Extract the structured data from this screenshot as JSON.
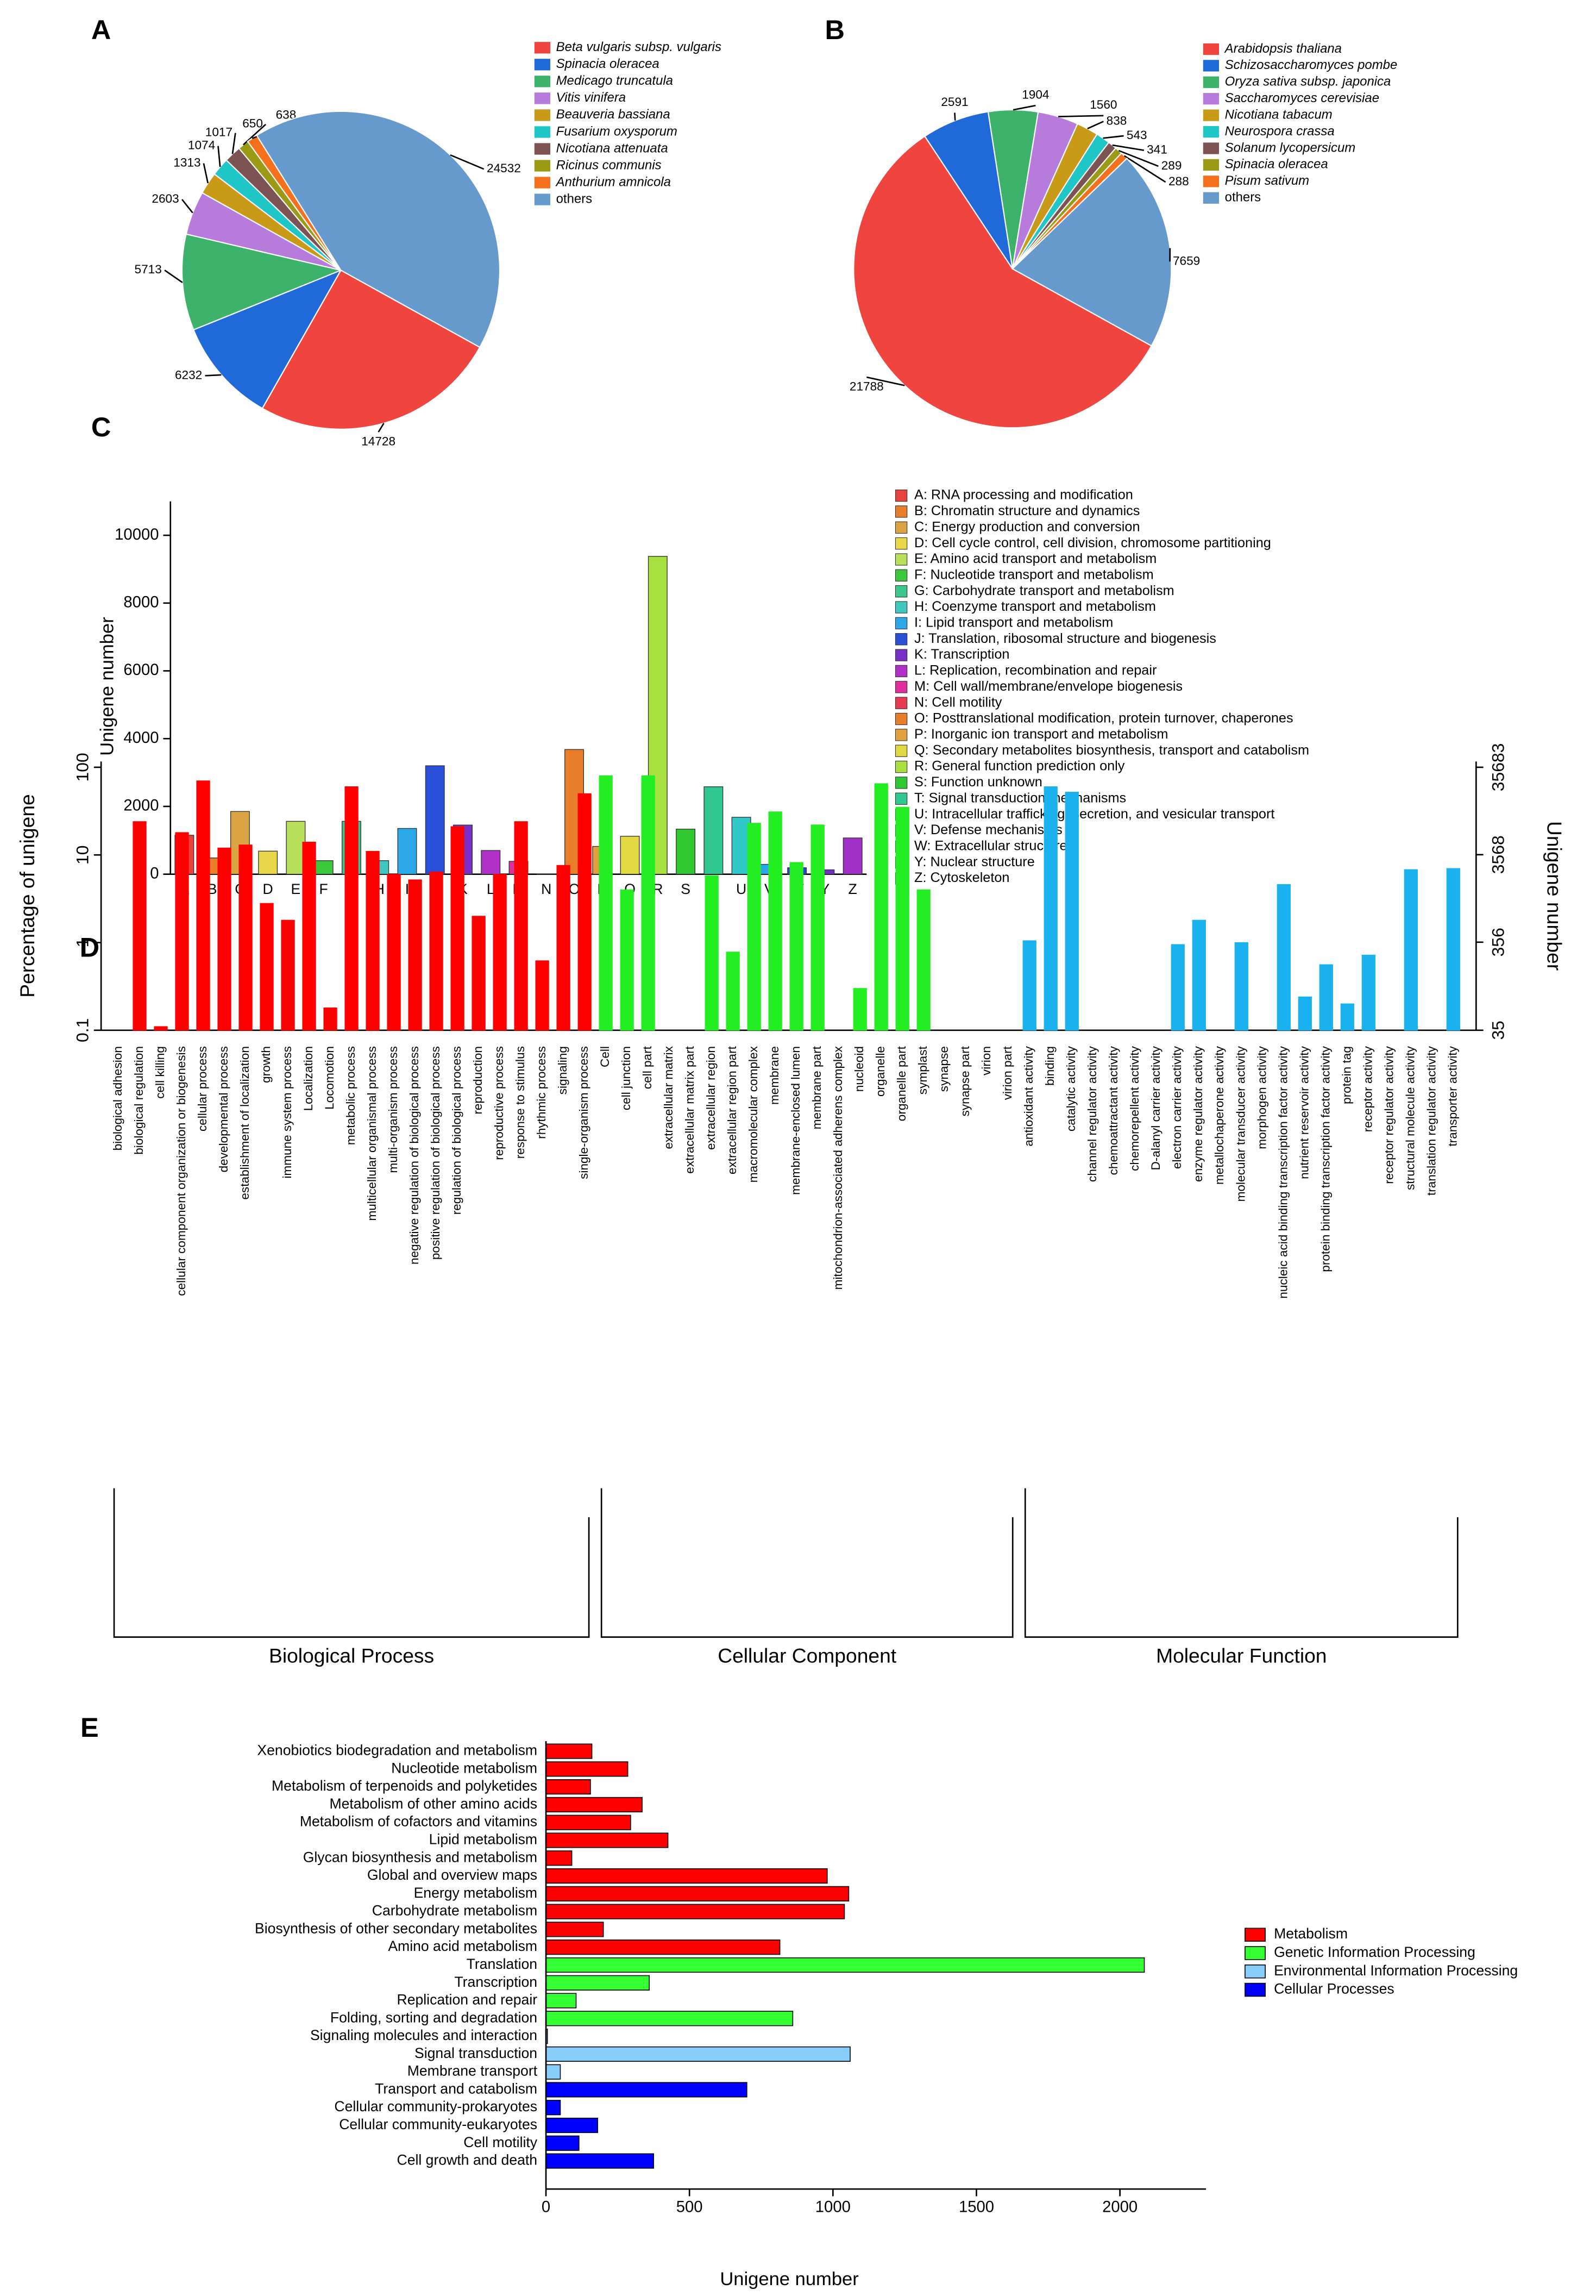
{
  "chart_data": [
    {
      "type": "pie",
      "panel": "A",
      "categories": [
        "Beta vulgaris subsp. vulgaris",
        "Spinacia oleracea",
        "Medicago truncatula",
        "Vitis vinifera",
        "Beauveria bassiana",
        "Fusarium oxysporum",
        "Nicotiana attenuata",
        "Ricinus communis",
        "Anthurium amnicola",
        "others"
      ],
      "values": [
        14728,
        6232,
        5713,
        2603,
        1313,
        1074,
        1017,
        650,
        638,
        24532
      ],
      "colors": [
        "#f0453f",
        "#1f6ad8",
        "#3cb26a",
        "#b77bdc",
        "#c99a17",
        "#1fc6c6",
        "#7d5252",
        "#9a9a14",
        "#f5701c",
        "#6699cc"
      ]
    },
    {
      "type": "pie",
      "panel": "B",
      "categories": [
        "Arabidopsis thaliana",
        "Schizosaccharomyces pombe",
        "Oryza sativa subsp. japonica",
        "Saccharomyces cerevisiae",
        "Nicotiana tabacum",
        "Neurospora crassa",
        "Solanum lycopersicum",
        "Spinacia oleracea",
        "Pisum sativum",
        "others"
      ],
      "values": [
        21788,
        2591,
        1904,
        1560,
        838,
        543,
        341,
        289,
        288,
        7659
      ],
      "colors": [
        "#f0453f",
        "#1f6ad8",
        "#3cb26a",
        "#b77bdc",
        "#c99a17",
        "#1fc6c6",
        "#7d5252",
        "#9a9a14",
        "#f5701c",
        "#6699cc"
      ]
    },
    {
      "type": "bar",
      "panel": "C",
      "ylabel": "Unigene number",
      "categories": [
        "A",
        "B",
        "C",
        "D",
        "E",
        "F",
        "G",
        "H",
        "I",
        "J",
        "K",
        "L",
        "M",
        "N",
        "O",
        "P",
        "Q",
        "R",
        "S",
        "T",
        "U",
        "V",
        "W",
        "Y",
        "Z"
      ],
      "values": [
        1150,
        480,
        1850,
        680,
        1560,
        400,
        1560,
        400,
        1350,
        3200,
        1450,
        700,
        380,
        10,
        3680,
        820,
        1120,
        9380,
        1330,
        2580,
        1680,
        290,
        190,
        130,
        1070
      ],
      "colors": [
        "#e8423f",
        "#e87d2a",
        "#d9a441",
        "#e8d84a",
        "#b8e05a",
        "#3cc83c",
        "#3cc88c",
        "#3ec8c0",
        "#2aa8e8",
        "#2a4fd8",
        "#7a30c8",
        "#b030c8",
        "#e030a0",
        "#e83a50",
        "#e87d2a",
        "#e0a040",
        "#e0d840",
        "#a8e040",
        "#30c830",
        "#30c890",
        "#30c8c8",
        "#28a8e8",
        "#2848d8",
        "#7030c8",
        "#a030c8"
      ],
      "legend": [
        "A: RNA processing and modification",
        "B: Chromatin structure and dynamics",
        "C: Energy production and conversion",
        "D: Cell cycle control, cell division, chromosome partitioning",
        "E: Amino acid transport and metabolism",
        "F: Nucleotide transport and metabolism",
        "G: Carbohydrate transport and metabolism",
        "H: Coenzyme transport and metabolism",
        "I: Lipid transport and metabolism",
        "J: Translation, ribosomal structure and biogenesis",
        "K: Transcription",
        "L: Replication, recombination and repair",
        "M: Cell wall/membrane/envelope biogenesis",
        "N: Cell motility",
        "O: Posttranslational modification, protein turnover, chaperones",
        "P: Inorganic ion transport and metabolism",
        "Q: Secondary metabolites biosynthesis, transport and catabolism",
        "R: General function prediction only",
        "S: Function unknown",
        "T: Signal transduction mechanisms",
        "U: Intracellular trafficking, secretion, and vesicular transport",
        "V: Defense mechanisms",
        "W: Extracellular structures",
        "Y: Nuclear structure",
        "Z: Cytoskeleton"
      ],
      "ylim": [
        0,
        11000
      ],
      "yticks": [
        0,
        2000,
        4000,
        6000,
        8000,
        10000
      ]
    },
    {
      "type": "bar",
      "panel": "D",
      "ylabel": "Percentage of unigene",
      "y2label": "Unigene number",
      "log_scale": true,
      "ylim": [
        0.1,
        100
      ],
      "yticks": [
        0.1,
        1,
        10,
        100
      ],
      "y2lim": [
        35,
        35683
      ],
      "y2ticks": [
        35,
        356,
        3568,
        35683
      ],
      "series": [
        {
          "name": "Biological Process",
          "color": "#ff0000",
          "categories": [
            "biological adhesion",
            "biological regulation",
            "cell killing",
            "cellular component organization or biogenesis",
            "cellular process",
            "developmental process",
            "establishment of localization",
            "growth",
            "immune system process",
            "Localization",
            "Locomotion",
            "metabolic process",
            "multicellular organismal process",
            "multi-organism process",
            "negative regulation of biological process",
            "positive regulation of biological process",
            "regulation of biological process",
            "reproduction",
            "reproductive process",
            "response to stimulus",
            "rhythmic process",
            "signaling",
            "single-organism process"
          ],
          "values": [
            0.1,
            24,
            0.11,
            18,
            70,
            12,
            13,
            2.8,
            1.8,
            14,
            0.18,
            60,
            11,
            6,
            5.2,
            6.4,
            21,
            2,
            6,
            24,
            0.62,
            7.6,
            50
          ]
        },
        {
          "name": "Cellular Component",
          "color": "#22ee22",
          "categories": [
            "Cell",
            "cell junction",
            "cell part",
            "extracellular matrix",
            "extracellular matrix part",
            "extracellular region",
            "extracellular region part",
            "macromolecular complex",
            "membrane",
            "membrane-enclosed lumen",
            "membrane part",
            "mitochondrion-associated adherens complex",
            "nucleoid",
            "organelle",
            "organelle part",
            "symplast",
            "synapse",
            "synapse part",
            "virion",
            "virion part"
          ],
          "values": [
            80,
            4,
            80,
            0.1,
            0.1,
            5.8,
            0.78,
            23,
            31,
            8.2,
            22,
            0.1,
            0.3,
            65,
            35,
            4,
            0.1,
            0.1,
            0.1,
            0.1
          ]
        },
        {
          "name": "Molecular Function",
          "color": "#1ab2ee",
          "categories": [
            "antioxidant activity",
            "binding",
            "catalytic activity",
            "channel regulator activity",
            "chemoattractant activity",
            "chemorepellent activity",
            "D-alanyl carrier activity",
            "electron carrier activity",
            "enzyme regulator activity",
            "metallochaperone activity",
            "molecular transducer activity",
            "morphogen activity",
            "nucleic acid binding transcription factor activity",
            "nutrient reservoir activity",
            "protein binding transcription factor activity",
            "protein tag",
            "receptor activity",
            "receptor regulator activity",
            "structural molecule activity",
            "translation regulator activity",
            "transporter activity"
          ],
          "values": [
            1.05,
            60,
            52,
            0.1,
            0.1,
            0.1,
            0.1,
            0.95,
            1.8,
            0.1,
            1,
            0.1,
            4.6,
            0.24,
            0.56,
            0.2,
            0.72,
            0.1,
            6.8,
            0.1,
            7
          ]
        }
      ]
    },
    {
      "type": "barh",
      "panel": "E",
      "xlabel": "Unigene number",
      "xlim": [
        0,
        2300
      ],
      "xticks": [
        0,
        500,
        1000,
        1500,
        2000
      ],
      "series": [
        {
          "name": "Metabolism",
          "color": "#ff0000",
          "categories": [
            "Xenobiotics biodegradation and metabolism",
            "Nucleotide metabolism",
            "Metabolism of terpenoids and polyketides",
            "Metabolism of other amino acids",
            "Metabolism of cofactors and vitamins",
            "Lipid metabolism",
            "Glycan biosynthesis and metabolism",
            "Global and overview maps",
            "Energy metabolism",
            "Carbohydrate metabolism",
            "Biosynthesis of other secondary metabolites",
            "Amino acid metabolism"
          ],
          "values": [
            160,
            285,
            155,
            335,
            295,
            425,
            90,
            980,
            1055,
            1040,
            200,
            815
          ]
        },
        {
          "name": "Genetic Information Processing",
          "color": "#33ff33",
          "categories": [
            "Translation",
            "Transcription",
            "Replication and repair",
            "Folding, sorting and degradation"
          ],
          "values": [
            2085,
            360,
            105,
            860
          ]
        },
        {
          "name": "Environmental Information Processing",
          "color": "#87cefa",
          "categories": [
            "Signaling molecules and interaction",
            "Signal transduction",
            "Membrane transport"
          ],
          "values": [
            5,
            1060,
            50
          ]
        },
        {
          "name": "Cellular Processes",
          "color": "#0000ff",
          "categories": [
            "Transport and catabolism",
            "Cellular community-prokaryotes",
            "Cellular community-eukaryotes",
            "Cell motility",
            "Cell growth and death"
          ],
          "values": [
            700,
            50,
            180,
            115,
            375
          ]
        }
      ]
    }
  ]
}
